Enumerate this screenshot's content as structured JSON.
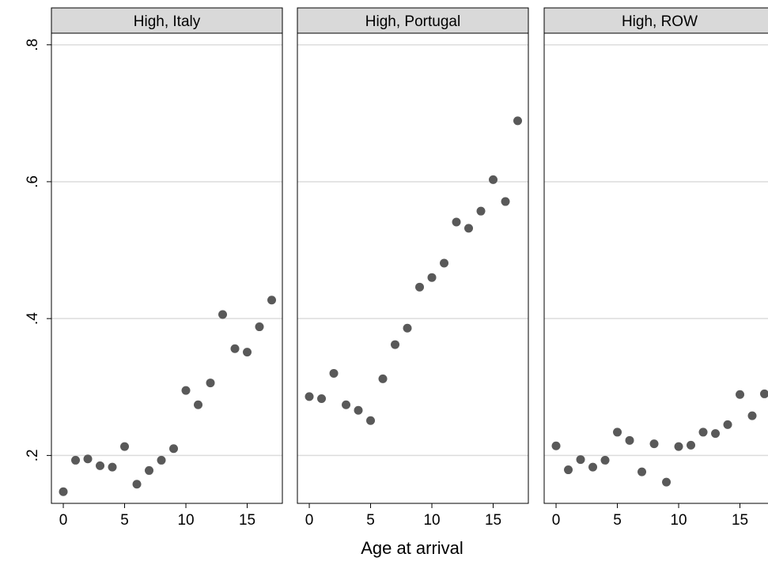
{
  "x_label": "Age at arrival",
  "chart_data": [
    {
      "type": "scatter",
      "title": "High, Italy",
      "color": "#595959",
      "grid": true,
      "x": [
        0,
        1,
        2,
        3,
        4,
        5,
        6,
        7,
        8,
        9,
        10,
        11,
        12,
        13,
        14,
        15,
        16,
        17
      ],
      "values": [
        0.147,
        0.193,
        0.195,
        0.185,
        0.183,
        0.213,
        0.158,
        0.178,
        0.193,
        0.21,
        0.295,
        0.274,
        0.306,
        0.406,
        0.356,
        0.351,
        0.388,
        0.427
      ],
      "xlim": [
        -0.97,
        17.87
      ],
      "xticks": [
        0,
        5,
        10,
        15
      ],
      "ylim": [
        0.13,
        0.817
      ],
      "yticks": [
        {
          "value": 0.2,
          "label": ".2"
        },
        {
          "value": 0.4,
          "label": ".4"
        },
        {
          "value": 0.6,
          "label": ".6"
        },
        {
          "value": 0.8,
          "label": ".8"
        }
      ]
    },
    {
      "type": "scatter",
      "title": "High, Portugal",
      "color": "#595959",
      "grid": true,
      "x": [
        0,
        1,
        2,
        3,
        4,
        5,
        6,
        7,
        8,
        9,
        10,
        11,
        12,
        13,
        14,
        15,
        16,
        17
      ],
      "values": [
        0.286,
        0.283,
        0.32,
        0.274,
        0.266,
        0.251,
        0.312,
        0.362,
        0.386,
        0.446,
        0.46,
        0.481,
        0.541,
        0.532,
        0.557,
        0.603,
        0.571,
        0.689
      ],
      "xlim": [
        -0.97,
        17.87
      ],
      "xticks": [
        0,
        5,
        10,
        15
      ],
      "ylim": [
        0.13,
        0.817
      ],
      "yticks": [
        {
          "value": 0.2,
          "label": ".2"
        },
        {
          "value": 0.4,
          "label": ".4"
        },
        {
          "value": 0.6,
          "label": ".6"
        },
        {
          "value": 0.8,
          "label": ".8"
        }
      ]
    },
    {
      "type": "scatter",
      "title": "High, ROW",
      "color": "#595959",
      "grid": true,
      "x": [
        0,
        1,
        2,
        3,
        4,
        5,
        6,
        7,
        8,
        9,
        10,
        11,
        12,
        13,
        14,
        15,
        16,
        17
      ],
      "values": [
        0.214,
        0.179,
        0.194,
        0.183,
        0.193,
        0.234,
        0.222,
        0.176,
        0.217,
        0.161,
        0.213,
        0.215,
        0.234,
        0.232,
        0.245,
        0.289,
        0.258,
        0.29
      ],
      "xlim": [
        -0.97,
        17.87
      ],
      "xticks": [
        0,
        5,
        10,
        15
      ],
      "ylim": [
        0.13,
        0.817
      ],
      "yticks": [
        {
          "value": 0.2,
          "label": ".2"
        },
        {
          "value": 0.4,
          "label": ".4"
        },
        {
          "value": 0.6,
          "label": ".6"
        },
        {
          "value": 0.8,
          "label": ".8"
        }
      ]
    }
  ]
}
